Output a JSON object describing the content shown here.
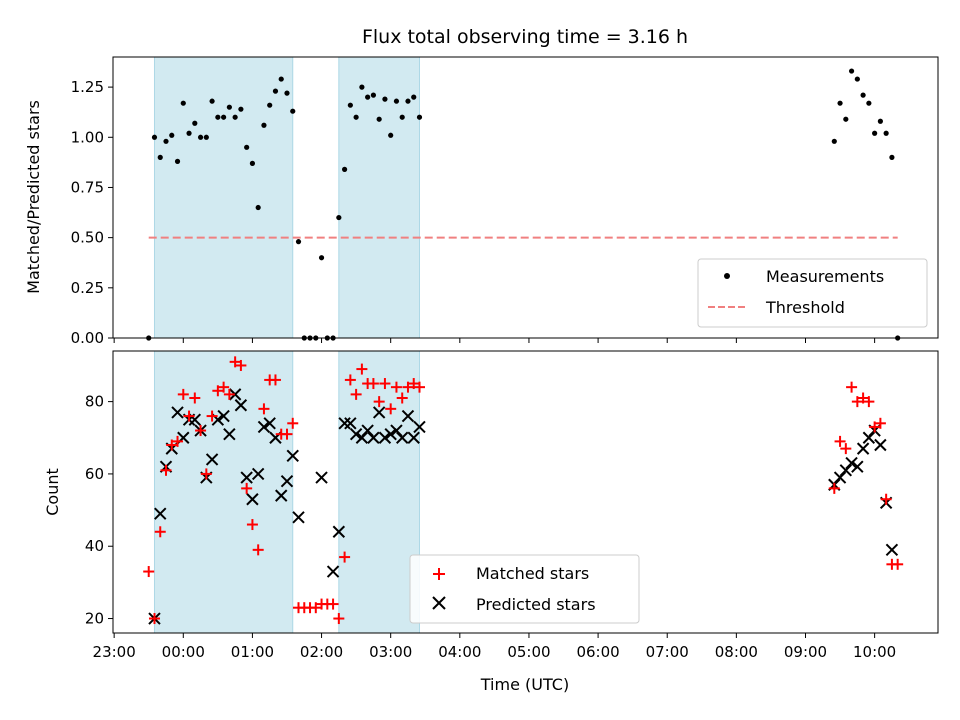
{
  "title": "Flux total observing time = 3.16 h",
  "chart_data": [
    {
      "type": "scatter",
      "panel": "top",
      "ylabel": "Matched/Predicted stars",
      "ylim": [
        0,
        1.4
      ],
      "yticks": [
        0.0,
        0.25,
        0.5,
        0.75,
        1.0,
        1.25
      ],
      "ytick_labels": [
        "0.00",
        "0.25",
        "0.50",
        "0.75",
        "1.00",
        "1.25"
      ],
      "xlim": [
        "22:59",
        "10:55"
      ],
      "shaded_intervals": [
        [
          "23:35",
          "01:35"
        ],
        [
          "02:15",
          "03:25"
        ]
      ],
      "shade_color": "#add8e6",
      "legend_position": "lower right",
      "series": [
        {
          "name": "Measurements",
          "marker": "dot",
          "color": "#000000",
          "x": [
            "23:30",
            "23:35",
            "23:40",
            "23:45",
            "23:50",
            "23:55",
            "00:00",
            "00:05",
            "00:10",
            "00:15",
            "00:20",
            "00:25",
            "00:30",
            "00:35",
            "00:40",
            "00:45",
            "00:50",
            "00:55",
            "01:00",
            "01:05",
            "01:10",
            "01:15",
            "01:20",
            "01:25",
            "01:30",
            "01:35",
            "01:40",
            "01:45",
            "01:50",
            "01:55",
            "02:00",
            "02:05",
            "02:10",
            "02:15",
            "02:20",
            "02:25",
            "02:30",
            "02:35",
            "02:40",
            "02:45",
            "02:50",
            "02:55",
            "03:00",
            "03:05",
            "03:10",
            "03:15",
            "03:20",
            "03:25",
            "09:25",
            "09:30",
            "09:35",
            "09:40",
            "09:45",
            "09:50",
            "09:55",
            "10:00",
            "10:05",
            "10:10",
            "10:15",
            "10:20"
          ],
          "y": [
            0.0,
            1.0,
            0.9,
            0.98,
            1.01,
            0.88,
            1.17,
            1.02,
            1.07,
            1.0,
            1.0,
            1.18,
            1.1,
            1.1,
            1.15,
            1.1,
            1.14,
            0.95,
            0.87,
            0.65,
            1.06,
            1.16,
            1.23,
            1.29,
            1.22,
            1.13,
            0.48,
            0.0,
            0.0,
            0.0,
            0.4,
            0.0,
            0.0,
            0.6,
            0.84,
            1.16,
            1.1,
            1.25,
            1.2,
            1.21,
            1.09,
            1.19,
            1.01,
            1.18,
            1.1,
            1.18,
            1.2,
            1.1,
            0.98,
            1.17,
            1.09,
            1.33,
            1.29,
            1.21,
            1.17,
            1.02,
            1.08,
            1.02,
            0.9,
            0.0
          ]
        },
        {
          "name": "Threshold",
          "marker": "dashed-line",
          "color": "#f08080",
          "x": [
            "23:30",
            "10:20"
          ],
          "y": [
            0.5,
            0.5
          ]
        }
      ]
    },
    {
      "type": "scatter",
      "panel": "bottom",
      "xlabel": "Time (UTC)",
      "ylabel": "Count",
      "ylim": [
        16,
        94
      ],
      "yticks": [
        20,
        40,
        60,
        80
      ],
      "ytick_labels": [
        "20",
        "40",
        "60",
        "80"
      ],
      "xlim": [
        "22:59",
        "10:55"
      ],
      "xtick_labels": [
        "23:00",
        "00:00",
        "01:00",
        "02:00",
        "03:00",
        "04:00",
        "05:00",
        "06:00",
        "07:00",
        "08:00",
        "09:00",
        "10:00"
      ],
      "shaded_intervals": [
        [
          "23:35",
          "01:35"
        ],
        [
          "02:15",
          "03:25"
        ]
      ],
      "shade_color": "#add8e6",
      "legend_position": "lower center",
      "series": [
        {
          "name": "Matched stars",
          "marker": "plus",
          "color": "#ff0000",
          "x": [
            "23:30",
            "23:35",
            "23:40",
            "23:45",
            "23:50",
            "23:55",
            "00:00",
            "00:05",
            "00:10",
            "00:15",
            "00:20",
            "00:25",
            "00:30",
            "00:35",
            "00:40",
            "00:45",
            "00:50",
            "00:55",
            "01:00",
            "01:05",
            "01:10",
            "01:15",
            "01:20",
            "01:25",
            "01:30",
            "01:35",
            "01:40",
            "01:45",
            "01:50",
            "01:55",
            "02:00",
            "02:05",
            "02:10",
            "02:15",
            "02:20",
            "02:25",
            "02:30",
            "02:35",
            "02:40",
            "02:45",
            "02:50",
            "02:55",
            "03:00",
            "03:05",
            "03:10",
            "03:15",
            "03:20",
            "03:25",
            "09:25",
            "09:30",
            "09:35",
            "09:40",
            "09:45",
            "09:50",
            "09:55",
            "10:00",
            "10:05",
            "10:10",
            "10:15",
            "10:20"
          ],
          "y": [
            33,
            20,
            44,
            61,
            68,
            69,
            82,
            76,
            81,
            72,
            60,
            76,
            83,
            84,
            82,
            91,
            90,
            56,
            46,
            39,
            78,
            86,
            86,
            71,
            71,
            74,
            23,
            23,
            23,
            23,
            24,
            24,
            24,
            20,
            37,
            86,
            82,
            89,
            85,
            85,
            80,
            85,
            78,
            84,
            81,
            84,
            85,
            84,
            56,
            69,
            67,
            84,
            80,
            81,
            80,
            73,
            74,
            53,
            35,
            35
          ]
        },
        {
          "name": "Predicted stars",
          "marker": "x",
          "color": "#000000",
          "x": [
            "23:35",
            "23:40",
            "23:45",
            "23:50",
            "23:55",
            "00:00",
            "00:05",
            "00:10",
            "00:15",
            "00:20",
            "00:25",
            "00:30",
            "00:35",
            "00:40",
            "00:45",
            "00:50",
            "00:55",
            "01:00",
            "01:05",
            "01:10",
            "01:15",
            "01:20",
            "01:25",
            "01:30",
            "01:35",
            "01:40",
            "02:00",
            "02:10",
            "02:15",
            "02:20",
            "02:25",
            "02:30",
            "02:35",
            "02:40",
            "02:45",
            "02:50",
            "02:55",
            "03:00",
            "03:05",
            "03:10",
            "03:15",
            "03:20",
            "03:25",
            "09:25",
            "09:30",
            "09:35",
            "09:40",
            "09:45",
            "09:50",
            "09:55",
            "10:00",
            "10:05",
            "10:10",
            "10:15"
          ],
          "y": [
            20,
            49,
            62,
            67,
            77,
            70,
            75,
            75,
            72,
            59,
            64,
            75,
            76,
            71,
            82,
            79,
            59,
            53,
            60,
            73,
            74,
            70,
            54,
            58,
            65,
            48,
            59,
            33,
            44,
            74,
            74,
            71,
            70,
            72,
            70,
            77,
            70,
            71,
            72,
            70,
            76,
            70,
            73,
            57,
            59,
            61,
            63,
            62,
            67,
            70,
            72,
            68,
            52,
            39
          ]
        }
      ]
    }
  ]
}
